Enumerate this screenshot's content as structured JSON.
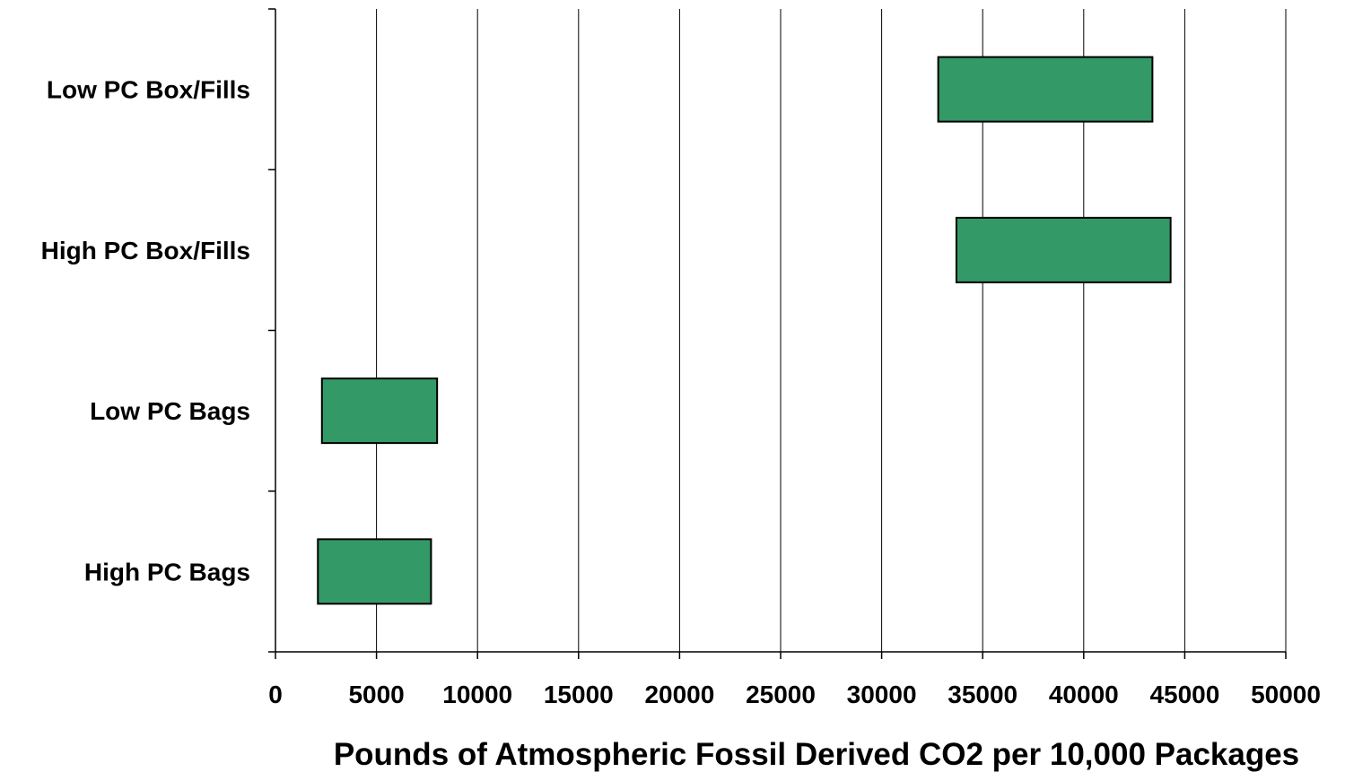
{
  "chart_data": {
    "type": "bar",
    "orientation": "horizontal",
    "subtype": "floating-range",
    "title": "",
    "xlabel": "Pounds of Atmospheric Fossil Derived CO2 per 10,000 Packages",
    "ylabel": "",
    "xlim": [
      0,
      50000
    ],
    "xticks": [
      0,
      5000,
      10000,
      15000,
      20000,
      25000,
      30000,
      35000,
      40000,
      45000,
      50000
    ],
    "grid": "vertical",
    "categories": [
      "Low PC Box/Fills",
      "High PC Box/Fills",
      "Low PC Bags",
      "High PC Bags"
    ],
    "series": [
      {
        "ranges": [
          [
            32800,
            43400
          ],
          [
            33700,
            44300
          ],
          [
            2300,
            8000
          ],
          [
            2100,
            7700
          ]
        ]
      }
    ],
    "colors": {
      "bar": "#339966",
      "grid": "#000000"
    }
  }
}
